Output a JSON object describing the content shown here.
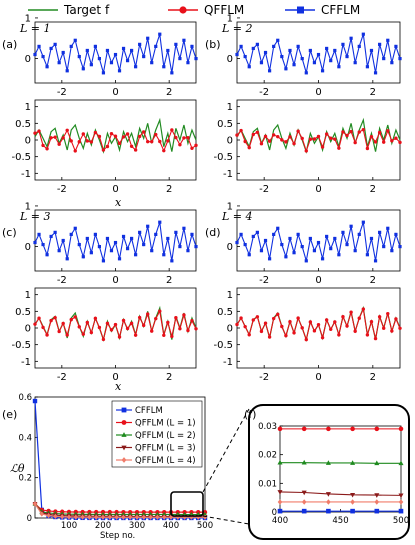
{
  "legend": [
    {
      "label": "Target f",
      "color": "#228b22",
      "marker": "line"
    },
    {
      "label": "QFFLM",
      "color": "#e8101a",
      "marker": "circle"
    },
    {
      "label": "CFFLM",
      "color": "#1030e0",
      "marker": "square"
    }
  ],
  "panels": [
    {
      "tag": "(a)",
      "layer_label": "L = 1",
      "xlabel": "x"
    },
    {
      "tag": "(b)",
      "layer_label": "L = 2",
      "xlabel": ""
    },
    {
      "tag": "(c)",
      "layer_label": "L = 3",
      "xlabel": "x"
    },
    {
      "tag": "(d)",
      "layer_label": "L = 4",
      "xlabel": ""
    }
  ],
  "loss_panel": {
    "tag": "(e)",
    "ylabel": "ℒθ",
    "xlabel": "Step no.",
    "inset_tag": "(f)"
  },
  "chart_data": [
    {
      "type": "line",
      "name": "function fits",
      "xlim": [
        -3,
        3
      ],
      "xticks": [
        -2,
        0,
        2
      ],
      "top_ylim": [
        -0.6,
        0.9
      ],
      "top_yticks": [
        0,
        1
      ],
      "bottom_ylim": [
        -1.2,
        1.2
      ],
      "bottom_yticks": [
        -1,
        -0.5,
        0,
        0.5,
        1
      ],
      "bottom_yticklabels": [
        "-1",
        "-0.5",
        "0",
        "0.5",
        "1"
      ],
      "fit_blend": [
        0.0,
        0.55,
        0.85,
        0.95
      ],
      "x": [
        -3.0,
        -2.85,
        -2.7,
        -2.55,
        -2.4,
        -2.25,
        -2.1,
        -1.95,
        -1.8,
        -1.65,
        -1.5,
        -1.35,
        -1.2,
        -1.05,
        -0.9,
        -0.75,
        -0.6,
        -0.45,
        -0.3,
        -0.15,
        0.0,
        0.15,
        0.3,
        0.45,
        0.6,
        0.75,
        0.9,
        1.05,
        1.2,
        1.35,
        1.5,
        1.65,
        1.8,
        1.95,
        2.1,
        2.25,
        2.4,
        2.55,
        2.7,
        2.85,
        3.0
      ],
      "target": [
        0.1,
        0.3,
        0.05,
        -0.2,
        0.25,
        0.35,
        -0.1,
        0.15,
        -0.3,
        0.3,
        0.45,
        0.05,
        -0.25,
        0.2,
        -0.15,
        0.3,
        0.0,
        -0.35,
        0.2,
        -0.1,
        0.1,
        -0.3,
        0.25,
        -0.05,
        0.2,
        -0.2,
        0.35,
        0.05,
        0.5,
        -0.1,
        0.3,
        0.6,
        -0.2,
        0.2,
        -0.35,
        0.35,
        0.0,
        0.45,
        -0.1,
        0.3,
        0.0
      ]
    },
    {
      "type": "line",
      "name": "loss",
      "xlim": [
        0,
        500
      ],
      "xticks": [
        100,
        200,
        300,
        400,
        500
      ],
      "ylim": [
        0,
        0.6
      ],
      "yticks": [
        0,
        0.2,
        0.4,
        0.6
      ],
      "yticklabels": [
        "0",
        "0.2",
        "0.4",
        "0.6"
      ],
      "inset_xlim": [
        400,
        500
      ],
      "inset_xticks": [
        400,
        450,
        500
      ],
      "inset_ylim": [
        0,
        0.03
      ],
      "inset_yticks": [
        0,
        0.01,
        0.02,
        0.03
      ],
      "inset_yticklabels": [
        "0",
        "0.01",
        "0.02",
        "0.03"
      ],
      "steps": [
        0,
        20,
        40,
        60,
        80,
        100,
        120,
        140,
        160,
        180,
        200,
        220,
        240,
        260,
        280,
        300,
        320,
        340,
        360,
        380,
        400,
        420,
        440,
        460,
        480,
        500
      ],
      "series": [
        {
          "name": "CFFLM",
          "color": "#1030e0",
          "marker": "square",
          "values": [
            0.58,
            0.04,
            0.01,
            0.005,
            0.003,
            0.002,
            0.001,
            0.0008,
            0.0006,
            0.0005,
            0.0004,
            0.0003,
            0.0003,
            0.0003,
            0.0003,
            0.0003,
            0.0003,
            0.0003,
            0.0003,
            0.0003,
            0.0003,
            0.0003,
            0.0003,
            0.0003,
            0.0003,
            0.0003
          ]
        },
        {
          "name": "QFFLM (L = 1)",
          "color": "#e8101a",
          "marker": "circle",
          "values": [
            0.07,
            0.04,
            0.035,
            0.032,
            0.031,
            0.03,
            0.0298,
            0.0296,
            0.0294,
            0.0293,
            0.0292,
            0.0291,
            0.0291,
            0.029,
            0.029,
            0.029,
            0.029,
            0.029,
            0.029,
            0.029,
            0.029,
            0.029,
            0.029,
            0.029,
            0.029,
            0.029
          ]
        },
        {
          "name": "QFFLM (L = 2)",
          "color": "#1e8a1e",
          "marker": "triangle",
          "values": [
            0.07,
            0.03,
            0.025,
            0.022,
            0.02,
            0.019,
            0.0185,
            0.018,
            0.0178,
            0.0176,
            0.0175,
            0.0174,
            0.0174,
            0.0173,
            0.0173,
            0.0173,
            0.0172,
            0.0172,
            0.0172,
            0.0172,
            0.0172,
            0.0172,
            0.0171,
            0.0171,
            0.017,
            0.017
          ]
        },
        {
          "name": "QFFLM (L = 3)",
          "color": "#8b1a1a",
          "marker": "triangle-down",
          "values": [
            0.07,
            0.025,
            0.018,
            0.014,
            0.012,
            0.011,
            0.01,
            0.0095,
            0.009,
            0.0085,
            0.0082,
            0.008,
            0.0078,
            0.0076,
            0.0074,
            0.0072,
            0.0071,
            0.0071,
            0.007,
            0.007,
            0.007,
            0.0068,
            0.0063,
            0.006,
            0.0059,
            0.0058
          ]
        },
        {
          "name": "QFFLM (L = 4)",
          "color": "#f07c6a",
          "marker": "diamond",
          "values": [
            0.07,
            0.02,
            0.012,
            0.008,
            0.006,
            0.005,
            0.0045,
            0.0042,
            0.004,
            0.0038,
            0.0037,
            0.0036,
            0.0036,
            0.0035,
            0.0035,
            0.0035,
            0.0035,
            0.0035,
            0.0035,
            0.0035,
            0.0035,
            0.0035,
            0.0035,
            0.0035,
            0.0035,
            0.0035
          ]
        }
      ]
    }
  ]
}
